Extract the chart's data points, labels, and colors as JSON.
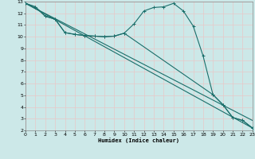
{
  "bg_color": "#cce8e8",
  "grid_color": "#e8c8c8",
  "line_color": "#1a6e6a",
  "xlabel": "Humidex (Indice chaleur)",
  "curve1": {
    "x": [
      0,
      1,
      2,
      3,
      4,
      5,
      6,
      7,
      8,
      9,
      10,
      11,
      12,
      13,
      14,
      15,
      16,
      17,
      18,
      19,
      20,
      21,
      22,
      23
    ],
    "y": [
      12.85,
      12.55,
      11.75,
      11.5,
      10.35,
      10.2,
      10.1,
      10.05,
      10.0,
      10.05,
      10.3,
      11.1,
      12.2,
      12.5,
      12.55,
      12.85,
      12.2,
      10.9,
      8.35,
      5.05,
      4.2,
      3.1,
      2.85,
      2.2
    ]
  },
  "curve2": {
    "x": [
      0,
      23
    ],
    "y": [
      12.85,
      2.2
    ]
  },
  "curve3": {
    "x": [
      0,
      23
    ],
    "y": [
      12.85,
      2.85
    ]
  },
  "curve4": {
    "x": [
      0,
      1,
      2,
      3,
      4,
      5,
      6,
      7,
      8,
      9,
      10,
      19,
      20,
      21,
      22,
      23
    ],
    "y": [
      12.85,
      12.55,
      11.75,
      11.5,
      10.35,
      10.2,
      10.1,
      10.05,
      10.0,
      10.05,
      10.3,
      5.05,
      4.2,
      3.1,
      2.85,
      2.2
    ]
  },
  "xlim": [
    0,
    23
  ],
  "ylim": [
    2,
    13
  ],
  "xticks": [
    0,
    1,
    2,
    3,
    4,
    5,
    6,
    7,
    8,
    9,
    10,
    11,
    12,
    13,
    14,
    15,
    16,
    17,
    18,
    19,
    20,
    21,
    22,
    23
  ],
  "yticks": [
    2,
    3,
    4,
    5,
    6,
    7,
    8,
    9,
    10,
    11,
    12,
    13
  ]
}
